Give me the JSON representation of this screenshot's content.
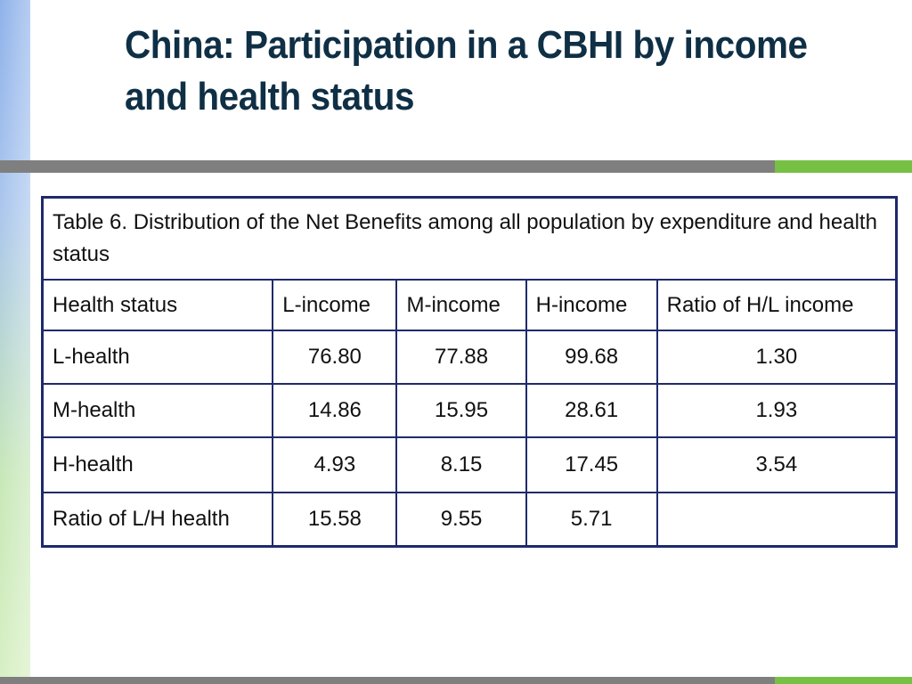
{
  "slide": {
    "title": "China: Participation in a CBHI by income and health status"
  },
  "table": {
    "caption": "Table 6. Distribution of the Net Benefits among all population by expenditure and health status",
    "headers": [
      "Health status",
      "L-income",
      "M-income",
      "H-income",
      "Ratio of H/L income"
    ],
    "rows": [
      [
        "L-health",
        "76.80",
        "77.88",
        "99.68",
        "1.30"
      ],
      [
        "M-health",
        "14.86",
        "15.95",
        "28.61",
        "1.93"
      ],
      [
        "H-health",
        "4.93",
        "8.15",
        "17.45",
        "3.54"
      ],
      [
        "Ratio of L/H health",
        "15.58",
        "9.55",
        "5.71",
        ""
      ]
    ]
  },
  "colors": {
    "title": "#0f2f45",
    "table_border": "#1f2a6b",
    "rule_gray": "#7f7f7f",
    "rule_green": "#76c043"
  }
}
